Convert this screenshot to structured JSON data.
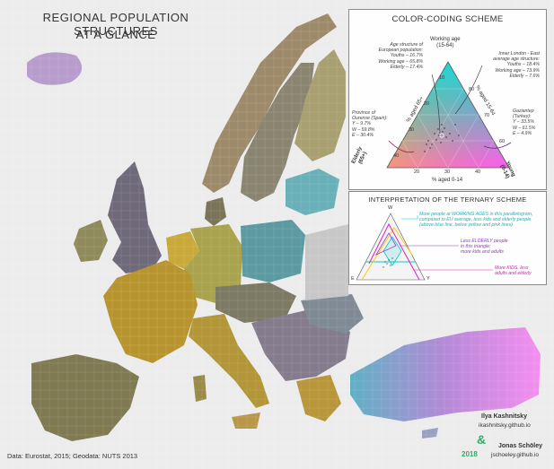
{
  "title": {
    "line1": "REGIONAL POPULATION STRUCTURES",
    "line2": "AT A GLANCE"
  },
  "legend": {
    "title": "COLOR-CODING SCHEME",
    "axis_top": "Working age\n(15-64)",
    "axis_left": "Elderly\n(65+)",
    "axis_right": "Young\n(0-14)",
    "axis_bottom_label": "% aged 0-14",
    "axis_left_label": "% aged 65+",
    "axis_right_label": "% aged 15-64",
    "ticks_bottom": [
      "20",
      "30",
      "40"
    ],
    "ticks_left": [
      "40",
      "30",
      "20",
      "10"
    ],
    "ticks_right": [
      "80",
      "70",
      "60"
    ],
    "europe_note": "Age structure of\nEuropean population:\nYouths – 16.7%\nWorking age – 65.8%\nElderly – 17.4%",
    "london_note": "Inner London - East\naverage age structure:\nYouths – 18.4%\nWorking age – 73.9%\nElderly – 7.6%",
    "ourense_note": "Province of\nOurense (Spain):\nY – 9.7%\nW – 59.8%\nE – 30.4%",
    "gaziantep_note": "Gaziantep\n(Turkey):\nY – 33.5%\nW – 61.5%\nE – 4.9%"
  },
  "interpretation": {
    "title": "INTERPRETATION OF THE TERNARY SCHEME",
    "working_text": "More people at WORKING AGES in this parallelogram,\ncompared to EU average, less kids and elderly people\n(above blue line, below yellow and pink lines)",
    "elderly_text": "Less ELDERLY people\nin this triangle;\nmore kids and adults",
    "kids_text": "More KIDS, less\nadults and elderly",
    "corner_w": "W",
    "corner_e": "E",
    "corner_y": "Y"
  },
  "credits": {
    "author1": "Ilya Kashnitsky",
    "author1_site": "ikashnitsky.github.io",
    "amp": "&",
    "author2": "Jonas Schöley",
    "author2_site": "jschoeley.github.io",
    "year": "2018"
  },
  "source": "Data: Eurostat, 2015; Geodata: NUTS 2013",
  "colors": {
    "working": "#00e5e5",
    "elderly": "#ffcc00",
    "young": "#ff5bf0",
    "neutral": "#8a8a80",
    "sea": "#ececec",
    "accent": "#3aa86b"
  }
}
